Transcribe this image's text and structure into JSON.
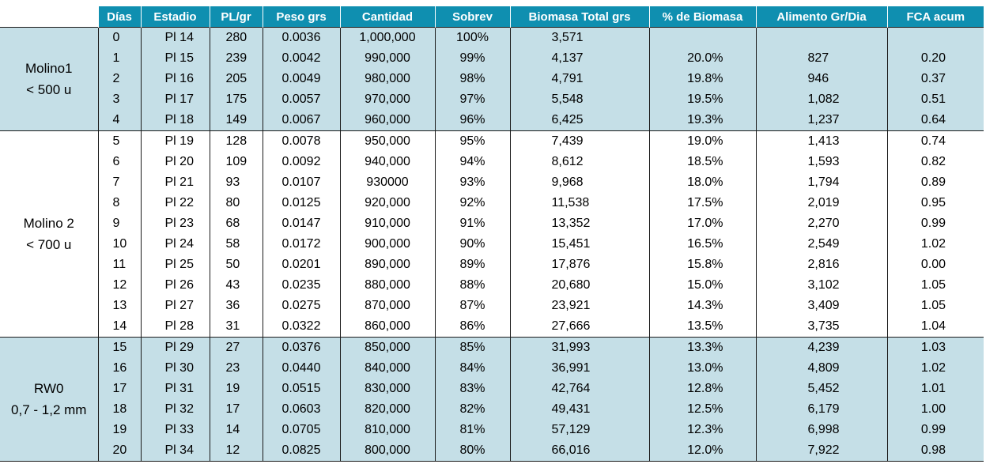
{
  "headers": [
    "Días",
    "Estadio",
    "PL/gr",
    "Peso grs",
    "Cantidad",
    "Sobrev",
    "Biomasa Total grs",
    "% de Biomasa",
    "Alimento Gr/Dia",
    "FCA acum"
  ],
  "groups": [
    {
      "line1": "Molino1",
      "line2": "< 500 u",
      "band": 1,
      "start": 0,
      "count": 5
    },
    {
      "line1": "Molino 2",
      "line2": "< 700 u",
      "band": 2,
      "start": 5,
      "count": 10
    },
    {
      "line1": "RW0",
      "line2": "0,7 - 1,2 mm",
      "band": 3,
      "start": 15,
      "count": 6
    }
  ],
  "rows": [
    [
      "0",
      "Pl 14",
      "280",
      "0.0036",
      "1,000,000",
      "100%",
      "3,571",
      "",
      "",
      ""
    ],
    [
      "1",
      "Pl 15",
      "239",
      "0.0042",
      "990,000",
      "99%",
      "4,137",
      "20.0%",
      "827",
      "0.20"
    ],
    [
      "2",
      "Pl 16",
      "205",
      "0.0049",
      "980,000",
      "98%",
      "4,791",
      "19.8%",
      "946",
      "0.37"
    ],
    [
      "3",
      "Pl 17",
      "175",
      "0.0057",
      "970,000",
      "97%",
      "5,548",
      "19.5%",
      "1,082",
      "0.51"
    ],
    [
      "4",
      "Pl 18",
      "149",
      "0.0067",
      "960,000",
      "96%",
      "6,425",
      "19.3%",
      "1,237",
      "0.64"
    ],
    [
      "5",
      "Pl 19",
      "128",
      "0.0078",
      "950,000",
      "95%",
      "7,439",
      "19.0%",
      "1,413",
      "0.74"
    ],
    [
      "6",
      "Pl 20",
      "109",
      "0.0092",
      "940,000",
      "94%",
      "8,612",
      "18.5%",
      "1,593",
      "0.82"
    ],
    [
      "7",
      "Pl 21",
      "93",
      "0.0107",
      "930000",
      "93%",
      "9,968",
      "18.0%",
      "1,794",
      "0.89"
    ],
    [
      "8",
      "Pl 22",
      "80",
      "0.0125",
      "920,000",
      "92%",
      "11,538",
      "17.5%",
      "2,019",
      "0.95"
    ],
    [
      "9",
      "Pl 23",
      "68",
      "0.0147",
      "910,000",
      "91%",
      "13,352",
      "17.0%",
      "2,270",
      "0.99"
    ],
    [
      "10",
      "Pl 24",
      "58",
      "0.0172",
      "900,000",
      "90%",
      "15,451",
      "16.5%",
      "2,549",
      "1.02"
    ],
    [
      "11",
      "Pl 25",
      "50",
      "0.0201",
      "890,000",
      "89%",
      "17,876",
      "15.8%",
      "2,816",
      "0.00"
    ],
    [
      "12",
      "Pl 26",
      "43",
      "0.0235",
      "880,000",
      "88%",
      "20,680",
      "15.0%",
      "3,102",
      "1.05"
    ],
    [
      "13",
      "Pl 27",
      "36",
      "0.0275",
      "870,000",
      "87%",
      "23,921",
      "14.3%",
      "3,409",
      "1.05"
    ],
    [
      "14",
      "Pl 28",
      "31",
      "0.0322",
      "860,000",
      "86%",
      "27,666",
      "13.5%",
      "3,735",
      "1.04"
    ],
    [
      "15",
      "Pl 29",
      "27",
      "0.0376",
      "850,000",
      "85%",
      "31,993",
      "13.3%",
      "4,239",
      "1.03"
    ],
    [
      "16",
      "Pl 30",
      "23",
      "0.0440",
      "840,000",
      "84%",
      "36,991",
      "13.0%",
      "4,809",
      "1.02"
    ],
    [
      "17",
      "Pl 31",
      "19",
      "0.0515",
      "830,000",
      "83%",
      "42,764",
      "12.8%",
      "5,452",
      "1.01"
    ],
    [
      "18",
      "Pl 32",
      "17",
      "0.0603",
      "820,000",
      "82%",
      "49,431",
      "12.5%",
      "6,179",
      "1.00"
    ],
    [
      "19",
      "Pl 33",
      "14",
      "0.0705",
      "810,000",
      "81%",
      "57,129",
      "12.3%",
      "6,998",
      "0.99"
    ],
    [
      "20",
      "Pl 34",
      "12",
      "0.0825",
      "800,000",
      "80%",
      "66,016",
      "12.0%",
      "7,922",
      "0.98"
    ]
  ]
}
